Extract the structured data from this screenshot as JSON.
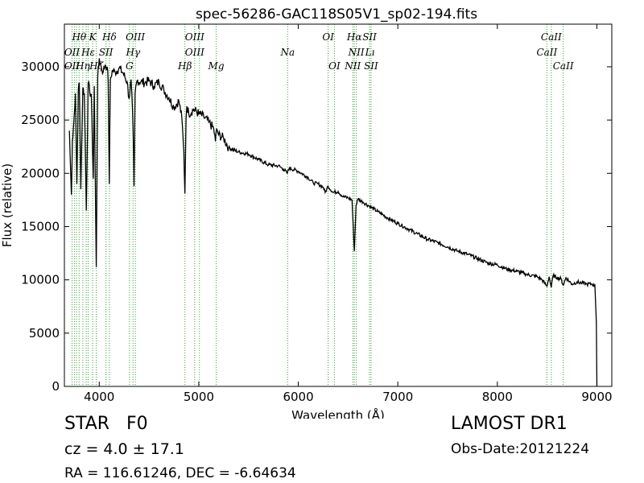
{
  "chart_data": {
    "type": "line",
    "title": "spec-56286-GAC118S05V1_sp02-194.fits",
    "xlabel": "Wavelength (Å)",
    "ylabel": "Flux (relative)",
    "xlim": [
      3650,
      9150
    ],
    "ylim": [
      0,
      34000
    ],
    "xticks": [
      4000,
      5000,
      6000,
      7000,
      8000,
      9000
    ],
    "yticks": [
      0,
      5000,
      10000,
      15000,
      20000,
      25000,
      30000
    ],
    "grid": false,
    "line_color": "#000000",
    "marker_color": "#2ca02c",
    "spectrum": {
      "x": [
        3700,
        3720,
        3730,
        3745,
        3760,
        3775,
        3790,
        3800,
        3815,
        3835,
        3850,
        3870,
        3889,
        3905,
        3920,
        3940,
        3950,
        3970,
        3985,
        4000,
        4020,
        4040,
        4060,
        4080,
        4090,
        4101,
        4112,
        4130,
        4160,
        4200,
        4240,
        4280,
        4300,
        4320,
        4340,
        4350,
        4360,
        4380,
        4420,
        4460,
        4500,
        4550,
        4600,
        4650,
        4700,
        4750,
        4800,
        4830,
        4850,
        4861,
        4872,
        4880,
        4900,
        4950,
        5000,
        5050,
        5100,
        5150,
        5167,
        5180,
        5200,
        5250,
        5300,
        5400,
        5500,
        5600,
        5700,
        5800,
        5850,
        5890,
        5910,
        6000,
        6100,
        6150,
        6200,
        6250,
        6270,
        6300,
        6350,
        6400,
        6450,
        6500,
        6540,
        6563,
        6580,
        6600,
        6650,
        6700,
        6800,
        6900,
        7000,
        7100,
        7200,
        7300,
        7400,
        7500,
        7600,
        7700,
        7800,
        7900,
        8000,
        8100,
        8200,
        8300,
        8400,
        8450,
        8498,
        8520,
        8542,
        8560,
        8600,
        8640,
        8662,
        8690,
        8750,
        8800,
        8850,
        8900,
        8950,
        8980,
        8995,
        9000
      ],
      "y": [
        24000,
        18000,
        23000,
        24800,
        27500,
        19000,
        27800,
        28500,
        18500,
        28000,
        27500,
        16500,
        28500,
        27600,
        27400,
        19500,
        28200,
        11200,
        29000,
        30800,
        30000,
        29500,
        30200,
        30000,
        28500,
        19000,
        28800,
        29600,
        29500,
        29900,
        29400,
        28600,
        27000,
        28800,
        24200,
        18800,
        27500,
        28700,
        28600,
        28500,
        28700,
        28200,
        28600,
        27800,
        27100,
        26200,
        26800,
        25200,
        22000,
        18100,
        25100,
        26300,
        25600,
        26000,
        25600,
        25300,
        24800,
        24200,
        23000,
        24200,
        23600,
        23300,
        22400,
        22000,
        21800,
        21300,
        20800,
        20700,
        20400,
        20000,
        20500,
        20200,
        19600,
        19100,
        19000,
        18700,
        18200,
        18800,
        18200,
        18300,
        17800,
        17700,
        17500,
        12700,
        17000,
        17600,
        17300,
        17000,
        16400,
        15800,
        15300,
        14800,
        14300,
        13800,
        13500,
        13100,
        12700,
        12400,
        12000,
        11600,
        11400,
        11000,
        10800,
        10500,
        10300,
        10000,
        9400,
        10300,
        9300,
        10400,
        10200,
        10100,
        9500,
        10200,
        9600,
        9800,
        9700,
        9600,
        9600,
        9500,
        6000,
        0
      ]
    },
    "line_markers": [
      {
        "label": "Hθ",
        "x": 3798,
        "row": 0
      },
      {
        "label": "K",
        "x": 3934,
        "row": 0
      },
      {
        "label": "Hδ",
        "x": 4102,
        "row": 0
      },
      {
        "label": "OIII",
        "x": 4363,
        "row": 0
      },
      {
        "label": "OIII",
        "x": 4959,
        "row": 0
      },
      {
        "label": "OI",
        "x": 6300,
        "row": 0
      },
      {
        "label": "Hα",
        "x": 6563,
        "row": 0
      },
      {
        "label": "SII",
        "x": 6716,
        "row": 0
      },
      {
        "label": "CaII",
        "x": 8542,
        "row": 0
      },
      {
        "label": "OII",
        "x": 3727,
        "row": 1
      },
      {
        "label": "Hε",
        "x": 3889,
        "row": 1
      },
      {
        "label": "SII",
        "x": 4068,
        "row": 1
      },
      {
        "label": "Hγ",
        "x": 4340,
        "row": 1
      },
      {
        "label": "OIII",
        "x": 4959,
        "row": 1
      },
      {
        "label": "Na",
        "x": 5893,
        "row": 1
      },
      {
        "label": "NII",
        "x": 6583,
        "row": 1
      },
      {
        "label": "Lı",
        "x": 6720,
        "row": 1
      },
      {
        "label": "CaII",
        "x": 8498,
        "row": 1
      },
      {
        "label": "OII",
        "x": 3727,
        "row": 2
      },
      {
        "label": "Hη",
        "x": 3835,
        "row": 2
      },
      {
        "label": "Hζ",
        "x": 3970,
        "row": 2
      },
      {
        "label": "G",
        "x": 4304,
        "row": 2
      },
      {
        "label": "Hβ",
        "x": 4861,
        "row": 2
      },
      {
        "label": "Mg",
        "x": 5175,
        "row": 2
      },
      {
        "label": "OI",
        "x": 6363,
        "row": 2
      },
      {
        "label": "NII",
        "x": 6548,
        "row": 2
      },
      {
        "label": "SII",
        "x": 6731,
        "row": 2
      },
      {
        "label": "CaII",
        "x": 8662,
        "row": 2
      }
    ],
    "marker_lines_x": [
      3727,
      3750,
      3771,
      3798,
      3835,
      3869,
      3889,
      3934,
      3970,
      4068,
      4102,
      4304,
      4340,
      4363,
      4861,
      4959,
      5007,
      5175,
      5893,
      6300,
      6363,
      6548,
      6563,
      6583,
      6716,
      6731,
      8498,
      8542,
      8662
    ]
  },
  "footer": {
    "object_type": "STAR",
    "subclass": "F0",
    "cz": "cz = 4.0 ± 17.1",
    "coords": "RA = 116.61246, DEC = -6.64634",
    "survey": "LAMOST DR1",
    "obs_date": "Obs-Date:20121224"
  }
}
